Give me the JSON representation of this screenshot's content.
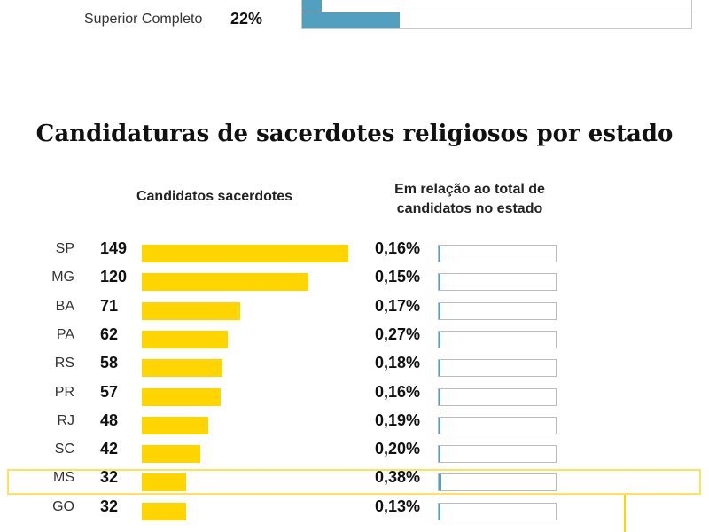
{
  "education": {
    "rows": [
      {
        "label": "",
        "percent_text": "",
        "value": 5
      },
      {
        "label": "Superior Completo",
        "percent_text": "22%",
        "value": 25
      }
    ]
  },
  "chart_data": {
    "type": "bar",
    "title": "Candidaturas de sacerdotes religiosos por estado",
    "column_left": "Candidatos sacerdotes",
    "column_right_line1": "Em relação ao total de",
    "column_right_line2": "candidatos no estado",
    "highlighted": "MS",
    "max": 149,
    "rows": [
      {
        "uf": "SP",
        "count": 149,
        "count_text": "149",
        "share": 0.16,
        "share_text": "0,16%"
      },
      {
        "uf": "MG",
        "count": 120,
        "count_text": "120",
        "share": 0.15,
        "share_text": "0,15%"
      },
      {
        "uf": "BA",
        "count": 71,
        "count_text": "71",
        "share": 0.17,
        "share_text": "0,17%"
      },
      {
        "uf": "PA",
        "count": 62,
        "count_text": "62",
        "share": 0.27,
        "share_text": "0,27%"
      },
      {
        "uf": "RS",
        "count": 58,
        "count_text": "58",
        "share": 0.18,
        "share_text": "0,18%"
      },
      {
        "uf": "PR",
        "count": 57,
        "count_text": "57",
        "share": 0.16,
        "share_text": "0,16%"
      },
      {
        "uf": "RJ",
        "count": 48,
        "count_text": "48",
        "share": 0.19,
        "share_text": "0,19%"
      },
      {
        "uf": "SC",
        "count": 42,
        "count_text": "42",
        "share": 0.2,
        "share_text": "0,20%"
      },
      {
        "uf": "MS",
        "count": 32,
        "count_text": "32",
        "share": 0.38,
        "share_text": "0,38%"
      },
      {
        "uf": "GO",
        "count": 32,
        "count_text": "32",
        "share": 0.13,
        "share_text": "0,13%"
      }
    ],
    "colors": {
      "bar": "#ffd500",
      "share": "#539fc0"
    }
  }
}
